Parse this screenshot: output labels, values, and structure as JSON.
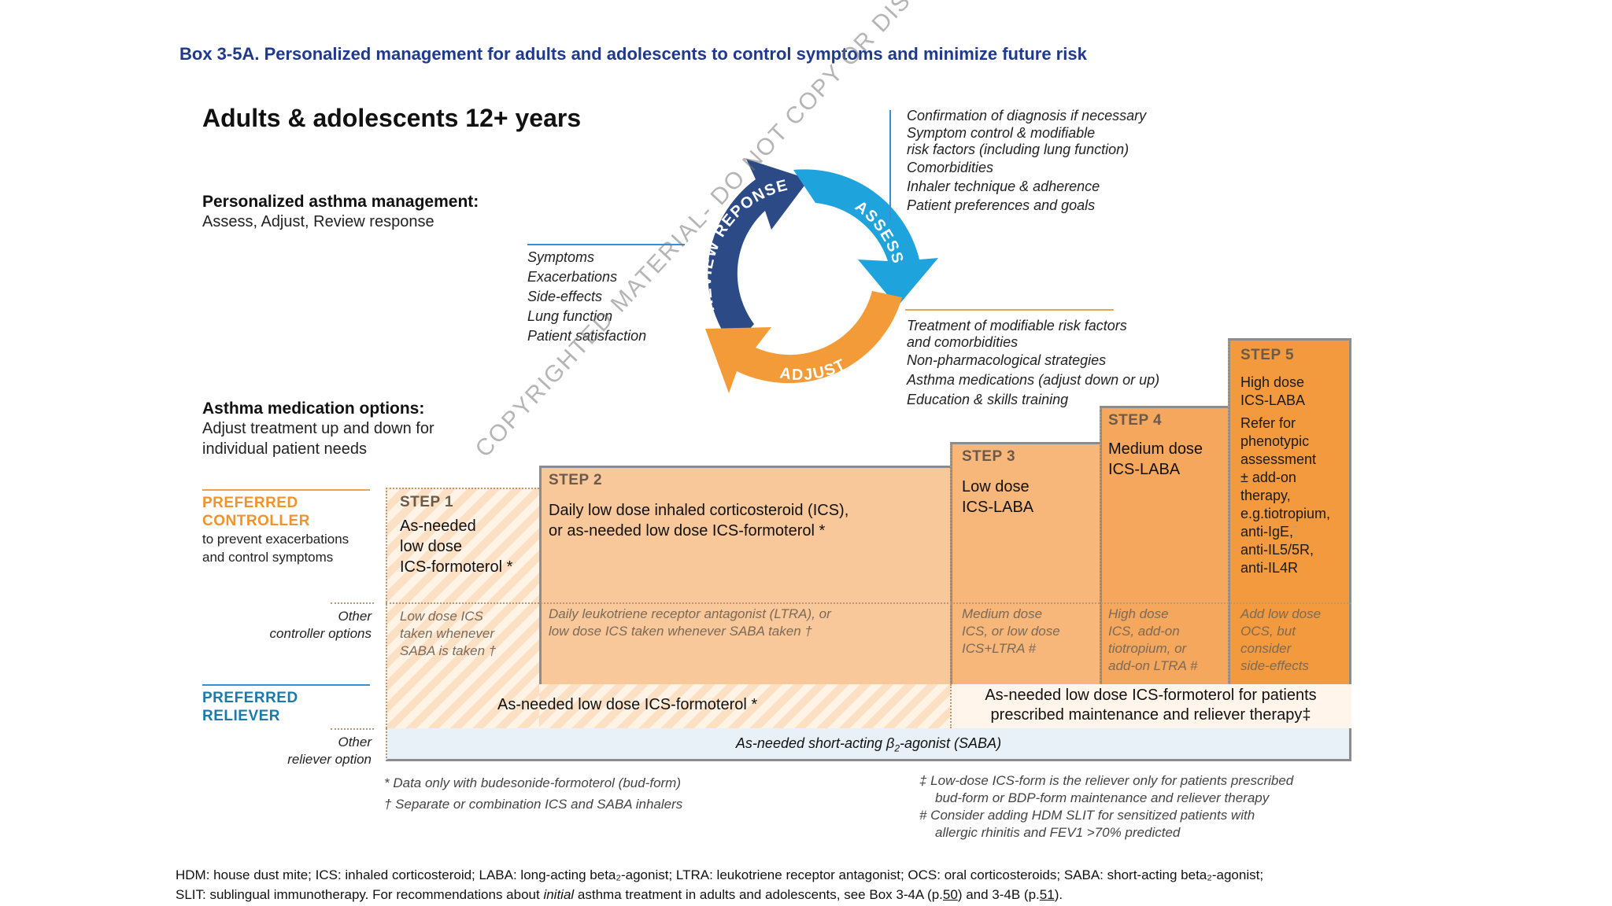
{
  "box_title": "Box 3-5A. Personalized management for adults and adolescents to control symptoms and minimize future risk",
  "main_heading": "Adults & adolescents 12+ years",
  "personalized": {
    "heading": "Personalized asthma management:",
    "sub": "Assess, Adjust, Review response"
  },
  "cycle": {
    "review": "REVIEW REPONSE",
    "assess": "ASSESS",
    "adjust": "ADJUST",
    "colors": {
      "review": "#2c4a86",
      "assess": "#1fa3dc",
      "adjust": "#f29b38"
    }
  },
  "assess_list": [
    "Confirmation of diagnosis if necessary",
    "Symptom control & modifiable",
    "risk factors (including lung function)",
    "Comorbidities",
    "Inhaler technique & adherence",
    "Patient preferences and goals"
  ],
  "review_list": [
    "Symptoms",
    "Exacerbations",
    "Side-effects",
    "Lung function",
    "Patient satisfaction"
  ],
  "adjust_list": [
    "Treatment of modifiable risk factors",
    "and comorbidities",
    "Non-pharmacological strategies",
    "Asthma medications (adjust down or up)",
    "Education & skills training"
  ],
  "medication_options": {
    "heading": "Asthma medication options:",
    "line1": "Adjust treatment up and down for",
    "line2": "individual patient needs"
  },
  "preferred_controller": {
    "line1": "PREFERRED",
    "line2": "CONTROLLER",
    "sub1": "to prevent exacerbations",
    "sub2": "and control symptoms"
  },
  "other_controller": {
    "line1": "Other",
    "line2": "controller options"
  },
  "preferred_reliever": {
    "line1": "PREFERRED",
    "line2": "RELIEVER"
  },
  "other_reliever": {
    "line1": "Other",
    "line2": "reliever option"
  },
  "steps": [
    {
      "title": "STEP 1",
      "lines": [
        "As-needed",
        "low dose",
        "ICS-formoterol *"
      ],
      "other": [
        "Low dose ICS",
        "taken whenever",
        "SABA is taken †"
      ]
    },
    {
      "title": "STEP 2",
      "lines": [
        "Daily low dose inhaled corticosteroid (ICS),",
        "or as-needed low dose ICS-formoterol *"
      ],
      "other": [
        "Daily leukotriene receptor antagonist (LTRA), or",
        "low dose ICS taken whenever SABA taken †"
      ]
    },
    {
      "title": "STEP 3",
      "lines": [
        "Low dose",
        "ICS-LABA"
      ],
      "other": [
        "Medium dose",
        "ICS, or low dose",
        "ICS+LTRA #"
      ]
    },
    {
      "title": "STEP 4",
      "lines": [
        "Medium dose",
        "ICS-LABA"
      ],
      "other": [
        "High dose",
        "ICS, add-on",
        "tiotropium, or",
        "add-on LTRA #"
      ]
    },
    {
      "title": "STEP 5",
      "lines": [
        "High dose",
        "ICS-LABA",
        "Refer for",
        "phenotypic",
        "assessment",
        "± add-on",
        "therapy,",
        "e.g.tiotropium,",
        "anti-IgE,",
        "anti-IL5/5R,",
        "anti-IL4R"
      ],
      "other": [
        "Add low dose",
        "OCS, but",
        "consider",
        "side-effects"
      ]
    }
  ],
  "reliever_left": "As-needed low dose ICS-formoterol *",
  "reliever_right": [
    "As-needed low dose ICS-formoterol  for patients",
    "prescribed maintenance and reliever therapy‡"
  ],
  "saba_prefix": "As-needed short-acting β",
  "saba_sub": "2",
  "saba_suffix": "-agonist (SABA)",
  "footnotes_left": [
    "* Data only with budesonide-formoterol (bud-form)",
    "† Separate or combination ICS and SABA inhalers"
  ],
  "footnotes_right": [
    "‡ Low-dose ICS-form is the reliever only for patients prescribed",
    "bud-form or BDP-form maintenance and reliever therapy",
    "# Consider adding HDM SLIT for sensitized patients with",
    "allergic rhinitis and FEV1 >70% predicted"
  ],
  "abbrev_line1": "HDM: house dust mite; ICS: inhaled corticosteroid; LABA: long-acting beta₂-agonist; LTRA: leukotriene receptor antagonist; OCS: oral corticosteroids; SABA: short-acting beta₂-agonist;",
  "abbrev_line2": {
    "a": "SLIT: sublingual immunotherapy. For recommendations about ",
    "b": "initial",
    "c": " asthma treatment in adults and adolescents, see Box 3-4A (p.",
    "d": "50",
    "e": ") and 3-4B (p.",
    "f": "51",
    "g": ")."
  },
  "watermark": "COPYRIGHTED MATERIAL- DO NOT COPY OR DISTRIBUTE"
}
